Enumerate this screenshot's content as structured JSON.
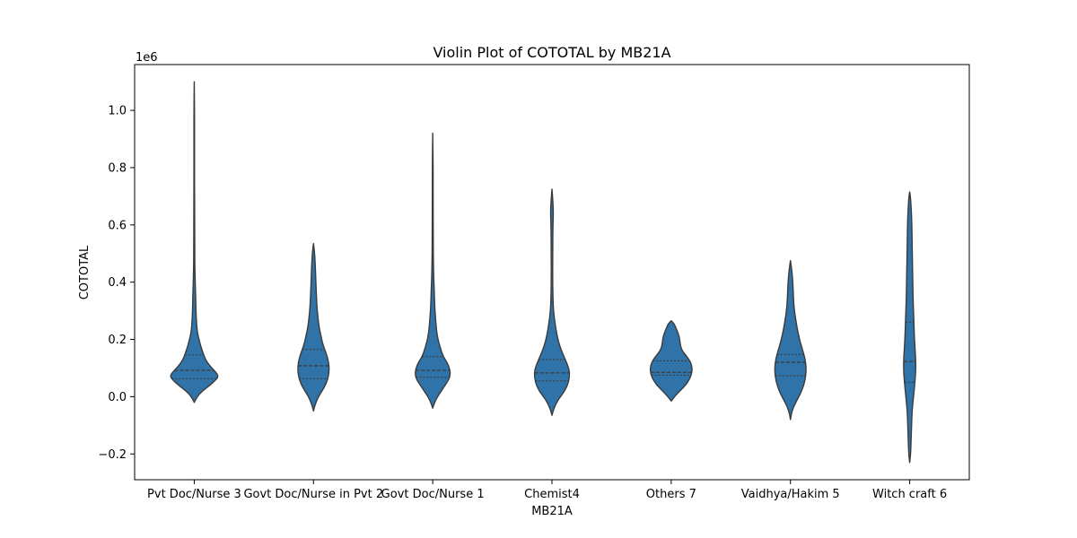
{
  "chart_data": {
    "type": "violin",
    "title": "Violin Plot of COTOTAL by MB21A",
    "xlabel": "MB21A",
    "ylabel": "COTOTAL",
    "y_scale_label": "1e6",
    "ylim": [
      -0.29,
      1.16
    ],
    "y_ticks": [
      -0.2,
      0.0,
      0.2,
      0.4,
      0.6,
      0.8,
      1.0
    ],
    "y_tick_labels": [
      "−0.2",
      "0.0",
      "0.2",
      "0.4",
      "0.6",
      "0.8",
      "1.0"
    ],
    "categories": [
      "Pvt Doc/Nurse 3",
      "Govt Doc/Nurse in Pvt 2",
      "Govt Doc/Nurse 1",
      "Chemist4",
      "Others 7",
      "Vaidhya/Hakim 5",
      "Witch craft 6"
    ],
    "violins": [
      {
        "category": "Pvt Doc/Nurse 3",
        "min": -0.02,
        "max": 1.1,
        "q1": 0.063,
        "median": 0.092,
        "q3": 0.146,
        "profile": [
          [
            -0.02,
            0.0
          ],
          [
            0.0,
            0.06
          ],
          [
            0.02,
            0.17
          ],
          [
            0.04,
            0.33
          ],
          [
            0.06,
            0.46
          ],
          [
            0.07,
            0.5
          ],
          [
            0.08,
            0.48
          ],
          [
            0.1,
            0.37
          ],
          [
            0.12,
            0.27
          ],
          [
            0.14,
            0.21
          ],
          [
            0.16,
            0.17
          ],
          [
            0.18,
            0.13
          ],
          [
            0.2,
            0.1
          ],
          [
            0.22,
            0.07
          ],
          [
            0.25,
            0.05
          ],
          [
            0.3,
            0.035
          ],
          [
            0.35,
            0.03
          ],
          [
            0.4,
            0.02
          ],
          [
            0.45,
            0.013
          ],
          [
            0.5,
            0.01
          ],
          [
            0.6,
            0.01
          ],
          [
            0.7,
            0.007
          ],
          [
            0.8,
            0.006
          ],
          [
            0.9,
            0.006
          ],
          [
            1.0,
            0.006
          ],
          [
            1.1,
            0.0
          ]
        ]
      },
      {
        "category": "Govt Doc/Nurse in Pvt 2",
        "min": -0.05,
        "max": 0.535,
        "q1": 0.063,
        "median": 0.108,
        "q3": 0.165,
        "profile": [
          [
            -0.05,
            0.0
          ],
          [
            -0.03,
            0.03
          ],
          [
            0.0,
            0.1
          ],
          [
            0.03,
            0.22
          ],
          [
            0.06,
            0.3
          ],
          [
            0.09,
            0.33
          ],
          [
            0.12,
            0.32
          ],
          [
            0.15,
            0.27
          ],
          [
            0.18,
            0.2
          ],
          [
            0.21,
            0.16
          ],
          [
            0.24,
            0.12
          ],
          [
            0.28,
            0.09
          ],
          [
            0.32,
            0.07
          ],
          [
            0.36,
            0.06
          ],
          [
            0.4,
            0.05
          ],
          [
            0.45,
            0.04
          ],
          [
            0.5,
            0.025
          ],
          [
            0.535,
            0.0
          ]
        ]
      },
      {
        "category": "Govt Doc/Nurse 1",
        "min": -0.04,
        "max": 0.92,
        "q1": 0.068,
        "median": 0.092,
        "q3": 0.14,
        "profile": [
          [
            -0.04,
            0.0
          ],
          [
            -0.02,
            0.04
          ],
          [
            0.0,
            0.1
          ],
          [
            0.03,
            0.22
          ],
          [
            0.06,
            0.34
          ],
          [
            0.08,
            0.37
          ],
          [
            0.1,
            0.35
          ],
          [
            0.12,
            0.3
          ],
          [
            0.14,
            0.22
          ],
          [
            0.17,
            0.16
          ],
          [
            0.2,
            0.11
          ],
          [
            0.23,
            0.08
          ],
          [
            0.27,
            0.06
          ],
          [
            0.32,
            0.04
          ],
          [
            0.38,
            0.03
          ],
          [
            0.42,
            0.02
          ],
          [
            0.5,
            0.012
          ],
          [
            0.6,
            0.01
          ],
          [
            0.7,
            0.008
          ],
          [
            0.8,
            0.008
          ],
          [
            0.92,
            0.0
          ]
        ]
      },
      {
        "category": "Chemist4",
        "min": -0.065,
        "max": 0.725,
        "q1": 0.055,
        "median": 0.083,
        "q3": 0.13,
        "profile": [
          [
            -0.065,
            0.0
          ],
          [
            -0.04,
            0.04
          ],
          [
            -0.01,
            0.13
          ],
          [
            0.02,
            0.27
          ],
          [
            0.05,
            0.35
          ],
          [
            0.08,
            0.37
          ],
          [
            0.1,
            0.35
          ],
          [
            0.13,
            0.28
          ],
          [
            0.16,
            0.2
          ],
          [
            0.19,
            0.14
          ],
          [
            0.22,
            0.1
          ],
          [
            0.25,
            0.07
          ],
          [
            0.3,
            0.03
          ],
          [
            0.35,
            0.02
          ],
          [
            0.4,
            0.015
          ],
          [
            0.5,
            0.015
          ],
          [
            0.6,
            0.02
          ],
          [
            0.64,
            0.03
          ],
          [
            0.68,
            0.02
          ],
          [
            0.725,
            0.0
          ]
        ]
      },
      {
        "category": "Others 7",
        "min": -0.015,
        "max": 0.265,
        "q1": 0.075,
        "median": 0.085,
        "q3": 0.125,
        "profile": [
          [
            -0.015,
            0.0
          ],
          [
            0.0,
            0.07
          ],
          [
            0.02,
            0.18
          ],
          [
            0.04,
            0.3
          ],
          [
            0.06,
            0.38
          ],
          [
            0.08,
            0.43
          ],
          [
            0.1,
            0.44
          ],
          [
            0.12,
            0.41
          ],
          [
            0.14,
            0.33
          ],
          [
            0.16,
            0.23
          ],
          [
            0.18,
            0.19
          ],
          [
            0.2,
            0.18
          ],
          [
            0.22,
            0.15
          ],
          [
            0.24,
            0.1
          ],
          [
            0.255,
            0.06
          ],
          [
            0.265,
            0.0
          ]
        ]
      },
      {
        "category": "Vaidhya/Hakim 5",
        "min": -0.08,
        "max": 0.475,
        "q1": 0.073,
        "median": 0.12,
        "q3": 0.147,
        "profile": [
          [
            -0.08,
            0.0
          ],
          [
            -0.05,
            0.03
          ],
          [
            -0.02,
            0.11
          ],
          [
            0.01,
            0.21
          ],
          [
            0.04,
            0.28
          ],
          [
            0.07,
            0.32
          ],
          [
            0.1,
            0.33
          ],
          [
            0.13,
            0.31
          ],
          [
            0.16,
            0.26
          ],
          [
            0.2,
            0.19
          ],
          [
            0.24,
            0.14
          ],
          [
            0.28,
            0.1
          ],
          [
            0.32,
            0.07
          ],
          [
            0.36,
            0.06
          ],
          [
            0.4,
            0.05
          ],
          [
            0.44,
            0.03
          ],
          [
            0.475,
            0.0
          ]
        ]
      },
      {
        "category": "Witch craft 6",
        "min": -0.23,
        "max": 0.715,
        "q1": 0.05,
        "median": 0.123,
        "q3": 0.26,
        "profile": [
          [
            -0.23,
            0.0
          ],
          [
            -0.2,
            0.02
          ],
          [
            -0.15,
            0.03
          ],
          [
            -0.1,
            0.04
          ],
          [
            -0.05,
            0.05
          ],
          [
            0.0,
            0.08
          ],
          [
            0.05,
            0.11
          ],
          [
            0.1,
            0.13
          ],
          [
            0.15,
            0.12
          ],
          [
            0.2,
            0.1
          ],
          [
            0.25,
            0.09
          ],
          [
            0.3,
            0.08
          ],
          [
            0.35,
            0.07
          ],
          [
            0.4,
            0.065
          ],
          [
            0.45,
            0.06
          ],
          [
            0.5,
            0.055
          ],
          [
            0.55,
            0.05
          ],
          [
            0.6,
            0.045
          ],
          [
            0.65,
            0.035
          ],
          [
            0.7,
            0.015
          ],
          [
            0.715,
            0.0
          ]
        ]
      }
    ],
    "fill_color": "#2f73a8",
    "outline_color": "#3b3b3b",
    "grid": false,
    "legend": "none"
  }
}
